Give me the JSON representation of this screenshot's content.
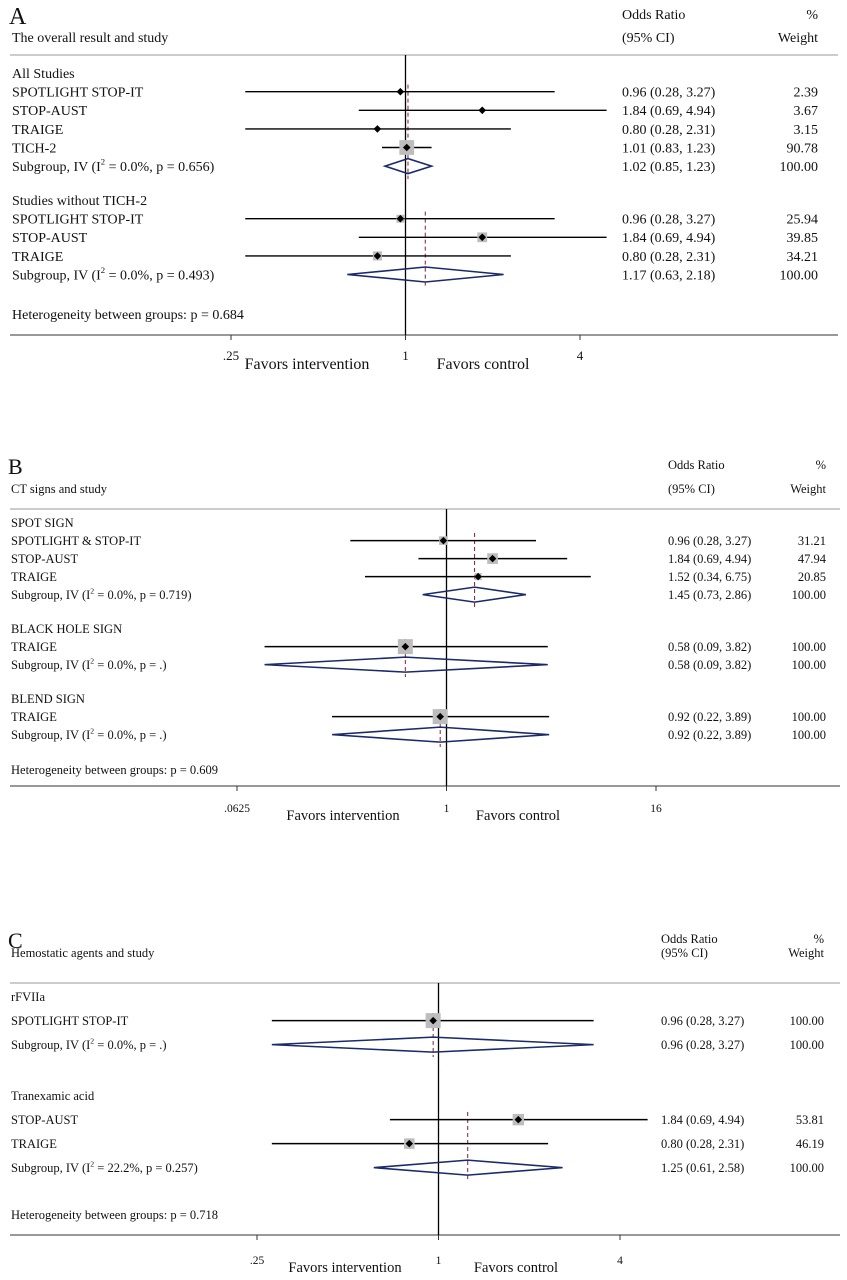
{
  "colors": {
    "line": "#000000",
    "diamond": "#1a2a6c",
    "pooled_dash": "#8b1a3a",
    "box": "#bdbdbd"
  },
  "chart_data": [
    {
      "type": "forest",
      "panel": "A",
      "subtitle": "The overall result and study",
      "header_or": "Odds Ratio",
      "header_ci": "(95% CI)",
      "header_pct": "%",
      "header_weight": "Weight",
      "x_scale": "log",
      "x_ticks": [
        0.25,
        1,
        4
      ],
      "x_tick_labels": [
        ".25",
        "1",
        "4"
      ],
      "xlabel_left": "Favors intervention",
      "xlabel_right": "Favors  control",
      "heterogeneity": "Heterogeneity between groups: p = 0.684",
      "groups": [
        {
          "name": "All Studies",
          "studies": [
            {
              "label": "SPOTLIGHT STOP-IT",
              "or": 0.96,
              "lo": 0.28,
              "hi": 3.27,
              "ci_text": "0.96 (0.28, 3.27)",
              "weight": "2.39"
            },
            {
              "label": "STOP-AUST",
              "or": 1.84,
              "lo": 0.69,
              "hi": 4.94,
              "ci_text": "1.84 (0.69, 4.94)",
              "weight": "3.67"
            },
            {
              "label": "TRAIGE",
              "or": 0.8,
              "lo": 0.28,
              "hi": 2.31,
              "ci_text": "0.80 (0.28, 2.31)",
              "weight": "3.15"
            },
            {
              "label": "TICH-2",
              "or": 1.01,
              "lo": 0.83,
              "hi": 1.23,
              "ci_text": "1.01 (0.83, 1.23)",
              "weight": "90.78"
            }
          ],
          "subgroup": {
            "label_pre": "Subgroup, IV (I",
            "sup": "2",
            "label_post": " = 0.0%, p = 0.656)",
            "or": 1.02,
            "lo": 0.85,
            "hi": 1.23,
            "ci_text": "1.02 (0.85, 1.23)",
            "weight": "100.00"
          }
        },
        {
          "name": "Studies without TICH-2",
          "studies": [
            {
              "label": "SPOTLIGHT STOP-IT",
              "or": 0.96,
              "lo": 0.28,
              "hi": 3.27,
              "ci_text": "0.96 (0.28, 3.27)",
              "weight": "25.94"
            },
            {
              "label": "STOP-AUST",
              "or": 1.84,
              "lo": 0.69,
              "hi": 4.94,
              "ci_text": "1.84 (0.69, 4.94)",
              "weight": "39.85"
            },
            {
              "label": "TRAIGE",
              "or": 0.8,
              "lo": 0.28,
              "hi": 2.31,
              "ci_text": "0.80 (0.28, 2.31)",
              "weight": "34.21"
            }
          ],
          "subgroup": {
            "label_pre": "Subgroup, IV (I",
            "sup": "2",
            "label_post": " = 0.0%, p = 0.493)",
            "or": 1.17,
            "lo": 0.63,
            "hi": 2.18,
            "ci_text": "1.17 (0.63, 2.18)",
            "weight": "100.00"
          }
        }
      ]
    },
    {
      "type": "forest",
      "panel": "B",
      "subtitle": "CT signs and study",
      "header_or": "Odds Ratio",
      "header_ci": "(95% CI)",
      "header_pct": "%",
      "header_weight": "Weight",
      "x_scale": "log",
      "x_ticks": [
        0.0625,
        1,
        16
      ],
      "x_tick_labels": [
        ".0625",
        "1",
        "16"
      ],
      "xlabel_left": "Favors intervention",
      "xlabel_right": "Favors  control",
      "heterogeneity": "Heterogeneity between groups: p = 0.609",
      "groups": [
        {
          "name": "SPOT SIGN",
          "studies": [
            {
              "label": "SPOTLIGHT & STOP-IT",
              "or": 0.96,
              "lo": 0.28,
              "hi": 3.27,
              "ci_text": "0.96 (0.28, 3.27)",
              "weight": "31.21"
            },
            {
              "label": "STOP-AUST",
              "or": 1.84,
              "lo": 0.69,
              "hi": 4.94,
              "ci_text": "1.84 (0.69, 4.94)",
              "weight": "47.94"
            },
            {
              "label": "TRAIGE",
              "or": 1.52,
              "lo": 0.34,
              "hi": 6.75,
              "ci_text": "1.52 (0.34, 6.75)",
              "weight": "20.85"
            }
          ],
          "subgroup": {
            "label_pre": "Subgroup, IV (I",
            "sup": "2",
            "label_post": " = 0.0%, p = 0.719)",
            "or": 1.45,
            "lo": 0.73,
            "hi": 2.86,
            "ci_text": "1.45 (0.73, 2.86)",
            "weight": "100.00"
          }
        },
        {
          "name": "BLACK HOLE SIGN",
          "studies": [
            {
              "label": "TRAIGE",
              "or": 0.58,
              "lo": 0.09,
              "hi": 3.82,
              "ci_text": "0.58 (0.09, 3.82)",
              "weight": "100.00"
            }
          ],
          "subgroup": {
            "label_pre": "Subgroup, IV (I",
            "sup": "2",
            "label_post": " = 0.0%, p = .)",
            "or": 0.58,
            "lo": 0.09,
            "hi": 3.82,
            "ci_text": "0.58 (0.09, 3.82)",
            "weight": "100.00"
          }
        },
        {
          "name": "BLEND SIGN",
          "studies": [
            {
              "label": "TRAIGE",
              "or": 0.92,
              "lo": 0.22,
              "hi": 3.89,
              "ci_text": "0.92 (0.22, 3.89)",
              "weight": "100.00"
            }
          ],
          "subgroup": {
            "label_pre": "Subgroup, IV (I",
            "sup": "2",
            "label_post": " = 0.0%, p = .)",
            "or": 0.92,
            "lo": 0.22,
            "hi": 3.89,
            "ci_text": "0.92 (0.22, 3.89)",
            "weight": "100.00"
          }
        }
      ]
    },
    {
      "type": "forest",
      "panel": "C",
      "subtitle": "Hemostatic agents and study",
      "header_or": "Odds Ratio",
      "header_ci": "(95% CI)",
      "header_pct": "%",
      "header_weight": "Weight",
      "x_scale": "log",
      "x_ticks": [
        0.25,
        1,
        4
      ],
      "x_tick_labels": [
        ".25",
        "1",
        "4"
      ],
      "xlabel_left": "Favors intervention",
      "xlabel_right": "Favors  control",
      "heterogeneity": "Heterogeneity between groups: p = 0.718",
      "groups": [
        {
          "name": "rFVIIa",
          "studies": [
            {
              "label": "SPOTLIGHT STOP-IT",
              "or": 0.96,
              "lo": 0.28,
              "hi": 3.27,
              "ci_text": "0.96 (0.28, 3.27)",
              "weight": "100.00"
            }
          ],
          "subgroup": {
            "label_pre": "Subgroup, IV (I",
            "sup": "2",
            "label_post": " = 0.0%, p = .)",
            "or": 0.96,
            "lo": 0.28,
            "hi": 3.27,
            "ci_text": "0.96 (0.28, 3.27)",
            "weight": "100.00"
          }
        },
        {
          "name": "Tranexamic acid",
          "studies": [
            {
              "label": "STOP-AUST",
              "or": 1.84,
              "lo": 0.69,
              "hi": 4.94,
              "ci_text": "1.84 (0.69, 4.94)",
              "weight": "53.81"
            },
            {
              "label": "TRAIGE",
              "or": 0.8,
              "lo": 0.28,
              "hi": 2.31,
              "ci_text": "0.80 (0.28, 2.31)",
              "weight": "46.19"
            }
          ],
          "subgroup": {
            "label_pre": "Subgroup, IV (I",
            "sup": "2",
            "label_post": " = 22.2%, p = 0.257)",
            "or": 1.25,
            "lo": 0.61,
            "hi": 2.58,
            "ci_text": "1.25 (0.61, 2.58)",
            "weight": "100.00"
          }
        }
      ]
    }
  ]
}
